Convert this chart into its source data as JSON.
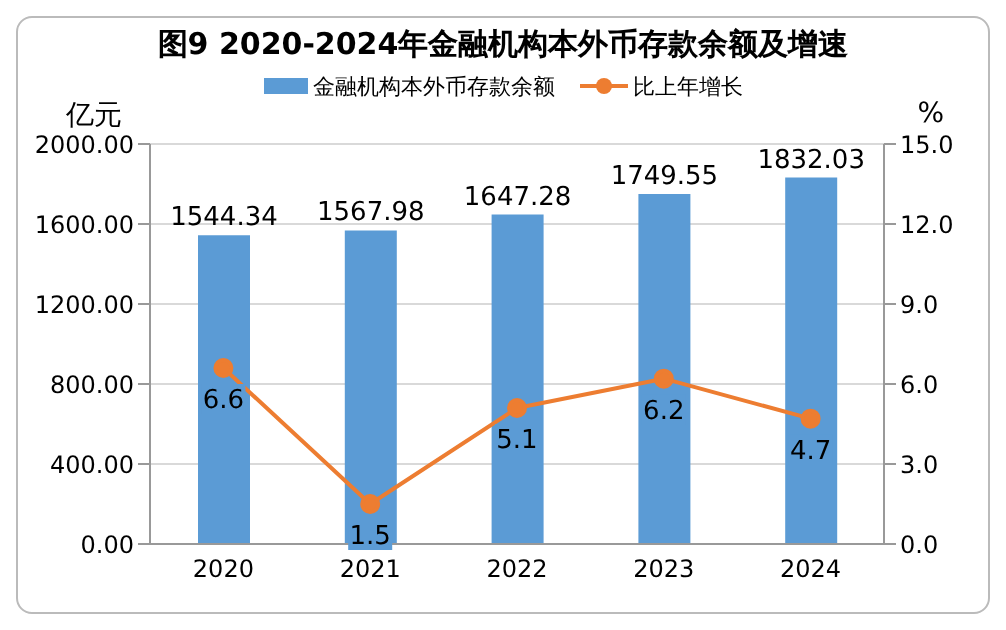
{
  "chart_data": {
    "type": "bar",
    "title": "图9  2020-2024年金融机构本外币存款余额及增速",
    "ylabel": "亿元",
    "y2label": "%",
    "categories": [
      "2020",
      "2021",
      "2022",
      "2023",
      "2024"
    ],
    "series": [
      {
        "name": "金融机构本外币存款余额",
        "color": "#5b9bd5",
        "values": [
          1544.34,
          1567.98,
          1647.28,
          1749.55,
          1832.03
        ]
      },
      {
        "name": "比上年增长",
        "type": "line",
        "axis": "y2",
        "color": "#ed7d31",
        "values": [
          6.6,
          1.5,
          5.1,
          6.2,
          4.7
        ]
      }
    ],
    "ylim": [
      0,
      2000
    ],
    "yticks": [
      {
        "value": 0,
        "label": "0.00"
      },
      {
        "value": 400,
        "label": "400.00"
      },
      {
        "value": 800,
        "label": "800.00"
      },
      {
        "value": 1200,
        "label": "1200.00"
      },
      {
        "value": 1600,
        "label": "1600.00"
      },
      {
        "value": 2000,
        "label": "2000.00"
      }
    ],
    "y2lim": [
      0,
      15
    ],
    "y2ticks": [
      {
        "value": 0,
        "label": "0.0"
      },
      {
        "value": 3,
        "label": "3.0"
      },
      {
        "value": 6,
        "label": "6.0"
      },
      {
        "value": 9,
        "label": "9.0"
      },
      {
        "value": 12,
        "label": "12.0"
      },
      {
        "value": 15,
        "label": "15.0"
      }
    ],
    "grid": "y",
    "legend": "top",
    "marker": "circle",
    "data_labels": true
  }
}
